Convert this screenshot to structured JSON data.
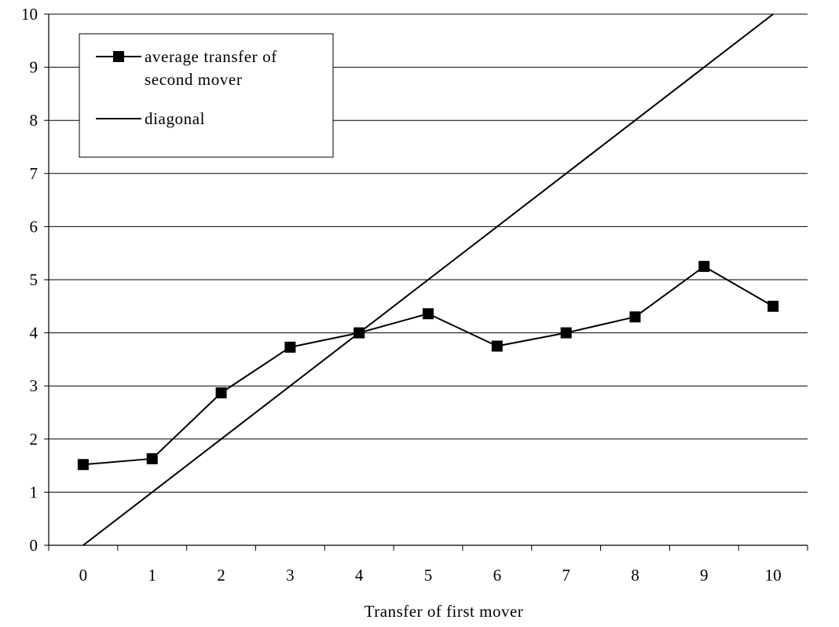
{
  "chart_data": {
    "type": "line",
    "x": [
      0,
      1,
      2,
      3,
      4,
      5,
      6,
      7,
      8,
      9,
      10
    ],
    "categories": [
      "0",
      "1",
      "2",
      "3",
      "4",
      "5",
      "6",
      "7",
      "8",
      "9",
      "10"
    ],
    "series": [
      {
        "name": "average transfer of second mover",
        "name_lines": [
          "average transfer of",
          "second mover"
        ],
        "values": [
          1.52,
          1.63,
          2.87,
          3.73,
          4.0,
          4.36,
          3.75,
          4.0,
          4.3,
          5.25,
          4.5
        ],
        "marker": "square",
        "color": "#000000"
      },
      {
        "name": "diagonal",
        "values": [
          0,
          1,
          2,
          3,
          4,
          5,
          6,
          7,
          8,
          9,
          10
        ],
        "marker": "none",
        "color": "#000000"
      }
    ],
    "title": "",
    "xlabel": "Transfer of first mover",
    "ylabel": "",
    "ylim": [
      0,
      10
    ],
    "yticks": [
      "0",
      "1",
      "2",
      "3",
      "4",
      "5",
      "6",
      "7",
      "8",
      "9",
      "10"
    ],
    "grid": "horizontal",
    "legend": "top-left"
  }
}
